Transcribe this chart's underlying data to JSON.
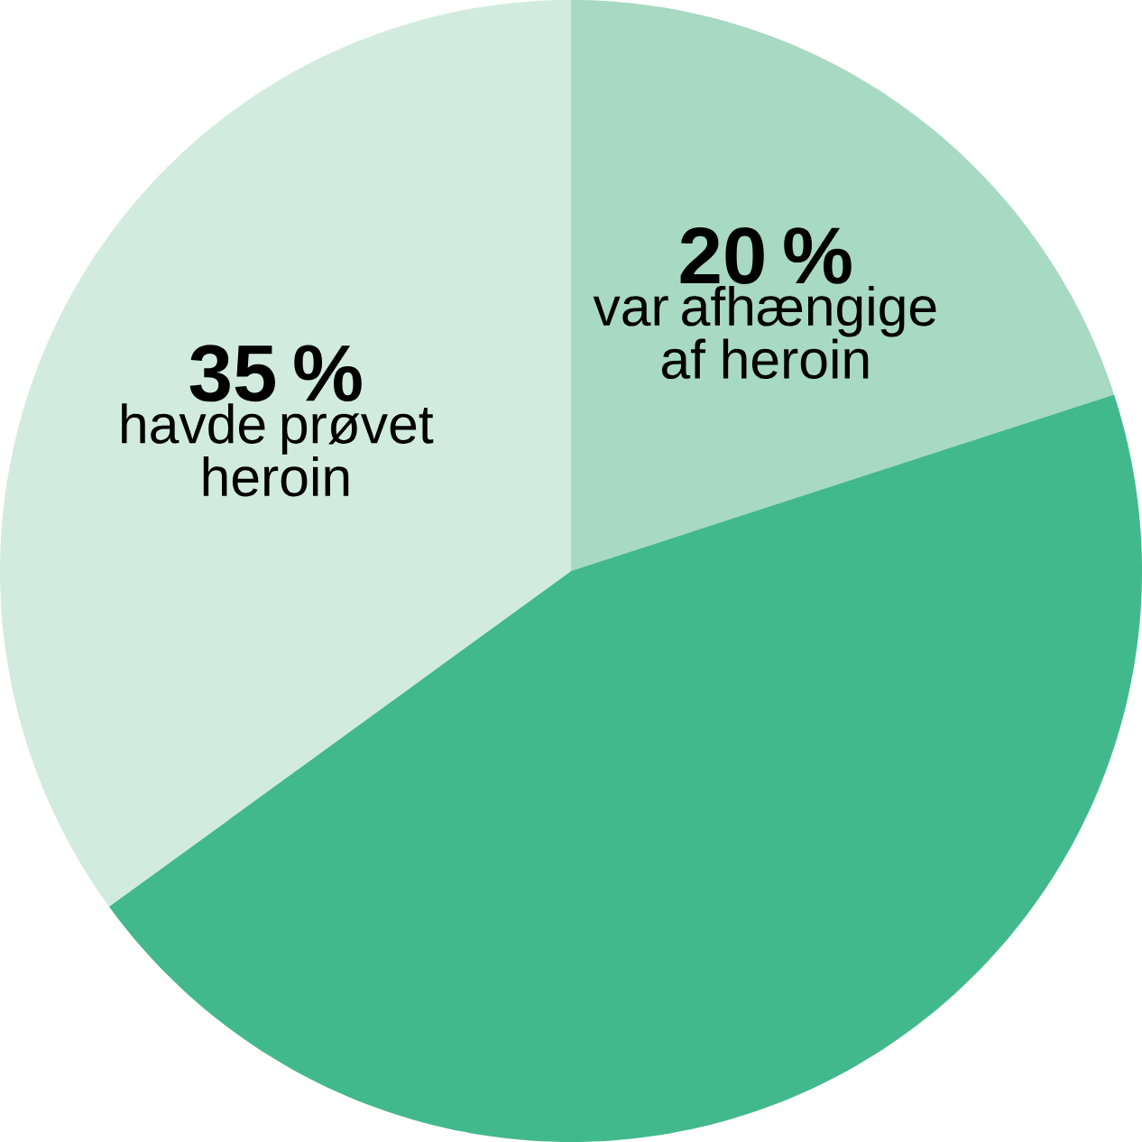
{
  "chart_data": {
    "type": "pie",
    "categories": [
      "var afhængige af heroin",
      null,
      "havde prøvet heroin"
    ],
    "values": [
      20,
      45,
      35
    ],
    "value_labels": [
      "20 %",
      null,
      "35 %"
    ],
    "colors": [
      "#a8d9c2",
      "#42b98c",
      "#d2ebdf"
    ]
  }
}
